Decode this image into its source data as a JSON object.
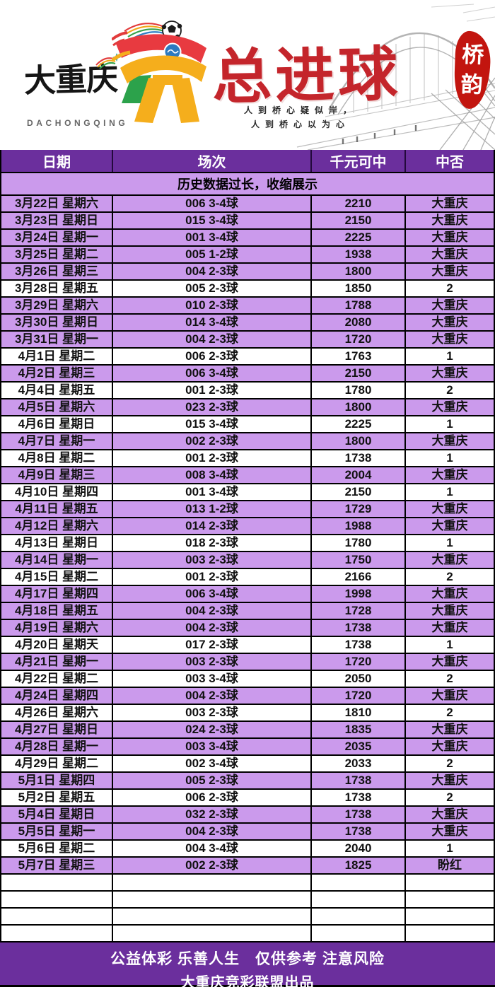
{
  "header": {
    "brand_title": "大重庆",
    "brand_subtitle": "DACHONGQING",
    "title": "总进球",
    "tagline_line1": "人到桥心疑似岸，",
    "tagline_line2": "人到桥心以为心",
    "seal_line1": "桥",
    "seal_line2": "韵"
  },
  "table": {
    "columns": [
      "日期",
      "场次",
      "千元可中",
      "中否"
    ],
    "notice": "历史数据过长，收缩展示",
    "rows": [
      {
        "date": "3月22日 星期六",
        "match": "006 3-4球",
        "value": "2210",
        "result": "大重庆"
      },
      {
        "date": "3月23日 星期日",
        "match": "015 3-4球",
        "value": "2150",
        "result": "大重庆"
      },
      {
        "date": "3月24日 星期一",
        "match": "001 3-4球",
        "value": "2225",
        "result": "大重庆"
      },
      {
        "date": "3月25日 星期二",
        "match": "005 1-2球",
        "value": "1938",
        "result": "大重庆"
      },
      {
        "date": "3月26日 星期三",
        "match": "004 2-3球",
        "value": "1800",
        "result": "大重庆"
      },
      {
        "date": "3月28日 星期五",
        "match": "005 2-3球",
        "value": "1850",
        "result": "2"
      },
      {
        "date": "3月29日 星期六",
        "match": "010 2-3球",
        "value": "1788",
        "result": "大重庆"
      },
      {
        "date": "3月30日 星期日",
        "match": "014 3-4球",
        "value": "2080",
        "result": "大重庆"
      },
      {
        "date": "3月31日 星期一",
        "match": "004 2-3球",
        "value": "1720",
        "result": "大重庆"
      },
      {
        "date": "4月1日 星期二",
        "match": "006 2-3球",
        "value": "1763",
        "result": "1"
      },
      {
        "date": "4月2日 星期三",
        "match": "006 3-4球",
        "value": "2150",
        "result": "大重庆"
      },
      {
        "date": "4月4日 星期五",
        "match": "001 2-3球",
        "value": "1780",
        "result": "2"
      },
      {
        "date": "4月5日 星期六",
        "match": "023 2-3球",
        "value": "1800",
        "result": "大重庆"
      },
      {
        "date": "4月6日 星期日",
        "match": "015 3-4球",
        "value": "2225",
        "result": "1"
      },
      {
        "date": "4月7日 星期一",
        "match": "002 2-3球",
        "value": "1800",
        "result": "大重庆"
      },
      {
        "date": "4月8日 星期二",
        "match": "001 2-3球",
        "value": "1738",
        "result": "1"
      },
      {
        "date": "4月9日 星期三",
        "match": "008 3-4球",
        "value": "2004",
        "result": "大重庆"
      },
      {
        "date": "4月10日 星期四",
        "match": "001 3-4球",
        "value": "2150",
        "result": "1"
      },
      {
        "date": "4月11日 星期五",
        "match": "013 1-2球",
        "value": "1729",
        "result": "大重庆"
      },
      {
        "date": "4月12日 星期六",
        "match": "014 2-3球",
        "value": "1988",
        "result": "大重庆"
      },
      {
        "date": "4月13日 星期日",
        "match": "018 2-3球",
        "value": "1780",
        "result": "1"
      },
      {
        "date": "4月14日 星期一",
        "match": "003 2-3球",
        "value": "1750",
        "result": "大重庆"
      },
      {
        "date": "4月15日 星期二",
        "match": "001 2-3球",
        "value": "2166",
        "result": "2"
      },
      {
        "date": "4月17日 星期四",
        "match": "006 3-4球",
        "value": "1998",
        "result": "大重庆"
      },
      {
        "date": "4月18日 星期五",
        "match": "004 2-3球",
        "value": "1728",
        "result": "大重庆"
      },
      {
        "date": "4月19日 星期六",
        "match": "004 2-3球",
        "value": "1738",
        "result": "大重庆"
      },
      {
        "date": "4月20日 星期天",
        "match": "017 2-3球",
        "value": "1738",
        "result": "1"
      },
      {
        "date": "4月21日 星期一",
        "match": "003 2-3球",
        "value": "1720",
        "result": "大重庆"
      },
      {
        "date": "4月22日 星期二",
        "match": "003 3-4球",
        "value": "2050",
        "result": "2"
      },
      {
        "date": "4月24日 星期四",
        "match": "004 2-3球",
        "value": "1720",
        "result": "大重庆"
      },
      {
        "date": "4月26日 星期六",
        "match": "003 2-3球",
        "value": "1810",
        "result": "2"
      },
      {
        "date": "4月27日 星期日",
        "match": "024 2-3球",
        "value": "1835",
        "result": "大重庆"
      },
      {
        "date": "4月28日 星期一",
        "match": "003 3-4球",
        "value": "2035",
        "result": "大重庆"
      },
      {
        "date": "4月29日 星期二",
        "match": "002 3-4球",
        "value": "2033",
        "result": "2"
      },
      {
        "date": "5月1日 星期四",
        "match": "005 2-3球",
        "value": "1738",
        "result": "大重庆"
      },
      {
        "date": "5月2日 星期五",
        "match": "006 2-3球",
        "value": "1738",
        "result": "2"
      },
      {
        "date": "5月4日 星期日",
        "match": "032 2-3球",
        "value": "1738",
        "result": "大重庆"
      },
      {
        "date": "5月5日 星期一",
        "match": "004 2-3球",
        "value": "1738",
        "result": "大重庆"
      },
      {
        "date": "5月6日 星期二",
        "match": "004 3-4球",
        "value": "2040",
        "result": "1"
      },
      {
        "date": "5月7日 星期三",
        "match": "002 2-3球",
        "value": "1825",
        "result": "盼红"
      }
    ],
    "empty_row_count": 4
  },
  "footer": {
    "line1": "公益体彩 乐善人生　仅供参考 注意风险",
    "line2": "大重庆竞彩联盟出品"
  },
  "colors": {
    "purple_dark": "#6b2f9d",
    "purple_light": "#cb9aec",
    "title_red": "#c4252b",
    "seal_red": "#c2150f",
    "mascot_red": "#e83a40",
    "mascot_yellow": "#f5ae1c",
    "mascot_green": "#2ca24b",
    "badge_blue": "#2d7abf"
  }
}
